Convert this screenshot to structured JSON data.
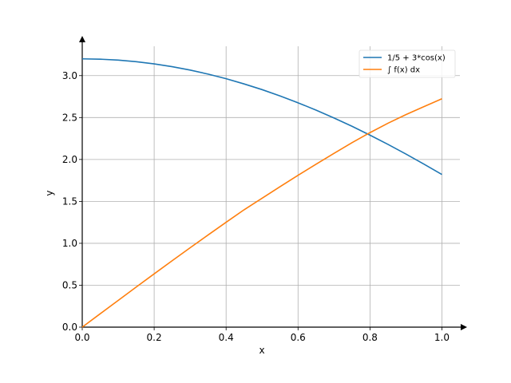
{
  "chart_data": {
    "type": "line",
    "xlabel": "x",
    "ylabel": "y",
    "xlim": [
      0.0,
      1.05
    ],
    "ylim": [
      0.0,
      3.35
    ],
    "grid": true,
    "legend_position": "top-right",
    "x_ticks": [
      "0.0",
      "0.2",
      "0.4",
      "0.6",
      "0.8",
      "1.0"
    ],
    "y_ticks": [
      "0.0",
      "0.5",
      "1.0",
      "1.5",
      "2.0",
      "2.5",
      "3.0"
    ],
    "x": [
      0.0,
      0.05,
      0.1,
      0.15,
      0.2,
      0.25,
      0.3,
      0.35,
      0.4,
      0.45,
      0.5,
      0.55,
      0.6,
      0.65,
      0.7,
      0.75,
      0.8,
      0.85,
      0.9,
      0.95,
      1.0
    ],
    "series": [
      {
        "name": "1/5 + 3*cos(x)",
        "color": "#1f77b4",
        "values": [
          3.2,
          3.196,
          3.185,
          3.166,
          3.14,
          3.107,
          3.066,
          3.018,
          2.963,
          2.901,
          2.833,
          2.758,
          2.676,
          2.589,
          2.495,
          2.396,
          2.29,
          2.18,
          2.065,
          1.944,
          1.821
        ]
      },
      {
        "name": "∫ f(x) dx",
        "color": "#ff7f0e",
        "values": [
          0.0,
          0.16,
          0.319,
          0.478,
          0.636,
          0.792,
          0.947,
          1.1,
          1.251,
          1.4,
          1.538,
          1.676,
          1.811,
          1.943,
          2.073,
          2.2,
          2.32,
          2.432,
          2.535,
          2.63,
          2.724
        ]
      }
    ]
  }
}
